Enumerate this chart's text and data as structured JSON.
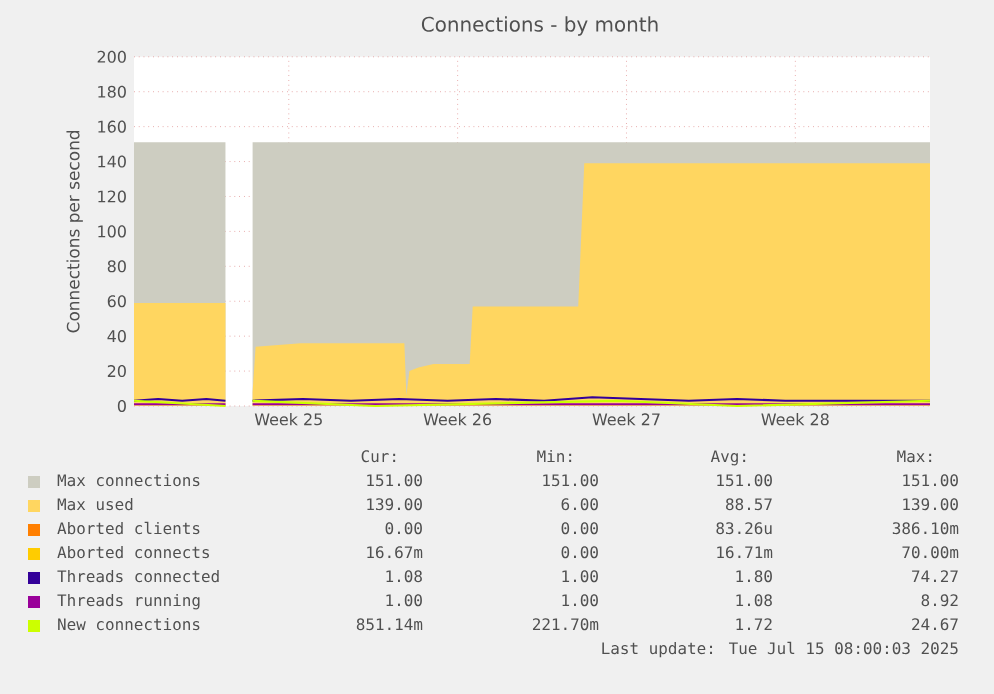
{
  "chart_data": {
    "type": "area",
    "title": "Connections - by month",
    "ylabel": "Connections per second",
    "xlim": [
      "2025-06-12T08:00",
      "2025-07-15T08:00"
    ],
    "ylim": [
      0,
      200
    ],
    "xticks": [
      {
        "value": "2025-06-18T18:00",
        "label": "Week 25"
      },
      {
        "value": "2025-06-25T18:00",
        "label": "Week 26"
      },
      {
        "value": "2025-07-02T18:00",
        "label": "Week 27"
      },
      {
        "value": "2025-07-09T18:00",
        "label": "Week 28"
      }
    ],
    "yticks": [
      0,
      20,
      40,
      60,
      80,
      100,
      120,
      140,
      160,
      180,
      200
    ],
    "grid": true,
    "legend": "bottom",
    "series": [
      {
        "name": "Max connections",
        "color": "#cdcdc1",
        "x": [
          "2025-06-12T08:00",
          "2025-06-16T03:00",
          "2025-06-16T04:00",
          "2025-06-17T06:00",
          "2025-07-15T08:00"
        ],
        "values": [
          151,
          151,
          null,
          151,
          151
        ]
      },
      {
        "name": "Max used",
        "color": "#ffd660",
        "x": [
          "2025-06-12T08:00",
          "2025-06-16T03:00",
          "2025-06-16T04:00",
          "2025-06-17T06:00",
          "2025-06-17T09:00",
          "2025-06-19T06:00",
          "2025-06-23T13:00",
          "2025-06-23T15:00",
          "2025-06-23T18:00",
          "2025-06-24T03:00",
          "2025-06-24T18:00",
          "2025-06-26T06:00",
          "2025-06-26T09:00",
          "2025-06-30T18:00",
          "2025-07-01T00:00",
          "2025-07-15T08:00"
        ],
        "values": [
          59,
          59,
          null,
          8,
          34,
          36,
          36,
          6,
          20,
          22,
          24,
          24,
          57,
          57,
          139,
          139
        ]
      },
      {
        "name": "Aborted clients",
        "color": "#ff7f00"
      },
      {
        "name": "Aborted connects",
        "color": "#ffcc00"
      },
      {
        "name": "Threads connected",
        "type": "line",
        "color": "#330099",
        "x": [
          "2025-06-12T08:00",
          "2025-06-13T08:00",
          "2025-06-14T08:00",
          "2025-06-15T08:00",
          "2025-06-16T03:00",
          "2025-06-16T04:00",
          "2025-06-17T06:00",
          "2025-06-19T08:00",
          "2025-06-21T08:00",
          "2025-06-23T08:00",
          "2025-06-25T08:00",
          "2025-06-27T08:00",
          "2025-06-29T08:00",
          "2025-07-01T08:00",
          "2025-07-03T08:00",
          "2025-07-05T08:00",
          "2025-07-07T08:00",
          "2025-07-09T08:00",
          "2025-07-11T08:00",
          "2025-07-13T08:00",
          "2025-07-15T08:00"
        ],
        "values": [
          3,
          4,
          3,
          4,
          3,
          null,
          3,
          4,
          3,
          4,
          3,
          4,
          3,
          5,
          4,
          3,
          4,
          3,
          3,
          3,
          3
        ]
      },
      {
        "name": "Threads running",
        "type": "line",
        "color": "#990099",
        "x": [
          "2025-06-12T08:00",
          "2025-06-16T03:00",
          "2025-06-16T04:00",
          "2025-06-17T06:00",
          "2025-07-15T08:00"
        ],
        "values": [
          1,
          1,
          null,
          1,
          1
        ]
      },
      {
        "name": "New connections",
        "type": "line",
        "color": "#ccff00",
        "x": [
          "2025-06-12T08:00",
          "2025-06-16T03:00",
          "2025-06-16T04:00",
          "2025-06-17T06:00",
          "2025-06-22T08:00",
          "2025-07-02T08:00",
          "2025-07-07T08:00",
          "2025-07-15T08:00"
        ],
        "values": [
          3,
          0,
          null,
          3,
          0,
          3,
          0,
          3
        ]
      }
    ],
    "annotations": [
      "Cur:",
      "Min:",
      "Avg:",
      "Max:",
      "151.00",
      "151.00",
      "151.00",
      "151.00",
      "139.00",
      "6.00",
      "88.57",
      "139.00",
      "0.00",
      "0.00",
      "83.26u",
      "386.10m",
      "16.67m",
      "0.00",
      "16.71m",
      "70.00m",
      "1.08",
      "1.00",
      "1.80",
      "74.27",
      "1.00",
      "1.00",
      "1.08",
      "8.92",
      "851.14m",
      "221.70m",
      "1.72",
      "24.67",
      "Last update: Tue Jul 15 08:00:03 2025"
    ]
  }
}
